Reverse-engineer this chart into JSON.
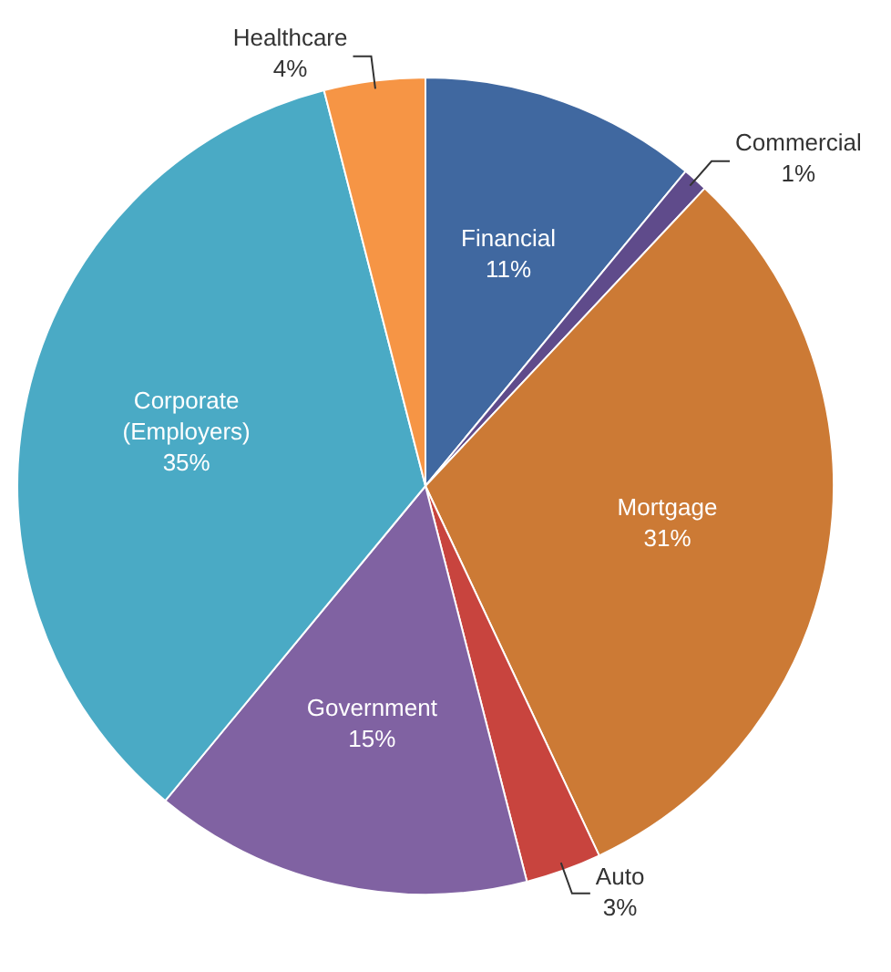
{
  "chart_data": {
    "type": "pie",
    "categories": [
      "Financial",
      "Commercial",
      "Mortgage",
      "Auto",
      "Government",
      "Corporate (Employers)",
      "Healthcare"
    ],
    "values": [
      11,
      1,
      31,
      3,
      15,
      35,
      4
    ],
    "value_labels": [
      "11%",
      "1%",
      "31%",
      "3%",
      "15%",
      "35%",
      "4%"
    ],
    "colors": [
      "#4068a0",
      "#5f4b8b",
      "#cc7a35",
      "#c8443e",
      "#8062a2",
      "#4aaac5",
      "#f69545"
    ],
    "legend": false
  }
}
